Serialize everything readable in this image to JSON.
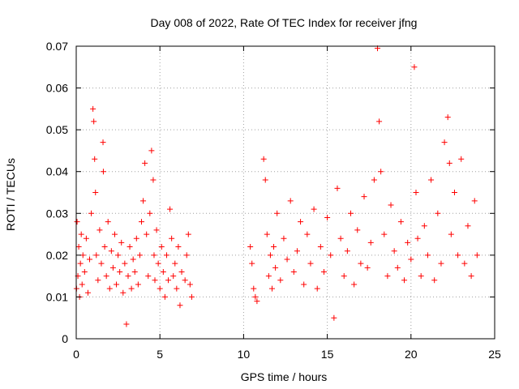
{
  "chart_data": {
    "type": "scatter",
    "title": "Day 008 of 2022, Rate Of TEC Index for receiver jfng",
    "xlabel": "GPS time / hours",
    "ylabel": "ROTI / TECUs",
    "xlim": [
      0,
      25
    ],
    "ylim": [
      0,
      0.07
    ],
    "xticks": [
      0,
      5,
      10,
      15,
      20,
      25
    ],
    "yticks": [
      0,
      0.01,
      0.02,
      0.03,
      0.04,
      0.05,
      0.06,
      0.07
    ],
    "xtick_labels": [
      "0",
      "5",
      "10",
      "15",
      "20",
      "25"
    ],
    "ytick_labels": [
      "0",
      "0.01",
      "0.02",
      "0.03",
      "0.04",
      "0.05",
      "0.06",
      "0.07"
    ],
    "grid": true,
    "marker": "+",
    "color": "#ff0000",
    "series": [
      {
        "name": "ROTI",
        "x": [
          0.02,
          0.05,
          0.1,
          0.15,
          0.2,
          0.25,
          0.3,
          0.35,
          0.4,
          0.5,
          0.6,
          0.7,
          0.8,
          0.9,
          1.0,
          1.05,
          1.1,
          1.15,
          1.2,
          1.3,
          1.4,
          1.5,
          1.6,
          1.62,
          1.7,
          1.8,
          1.9,
          2.0,
          2.1,
          2.2,
          2.3,
          2.4,
          2.5,
          2.6,
          2.7,
          2.8,
          2.9,
          3.0,
          3.1,
          3.2,
          3.3,
          3.4,
          3.5,
          3.6,
          3.7,
          3.8,
          3.9,
          4.0,
          4.1,
          4.2,
          4.3,
          4.4,
          4.5,
          4.6,
          4.65,
          4.7,
          4.8,
          4.9,
          5.0,
          5.1,
          5.2,
          5.3,
          5.4,
          5.5,
          5.6,
          5.7,
          5.8,
          5.9,
          6.0,
          6.1,
          6.2,
          6.3,
          6.5,
          6.6,
          6.7,
          6.8,
          6.9,
          10.4,
          10.5,
          10.6,
          10.7,
          10.8,
          11.2,
          11.3,
          11.4,
          11.5,
          11.6,
          11.7,
          11.8,
          11.9,
          12.0,
          12.2,
          12.4,
          12.6,
          12.8,
          13.0,
          13.2,
          13.4,
          13.6,
          13.8,
          14.0,
          14.2,
          14.4,
          14.6,
          14.8,
          15.0,
          15.2,
          15.4,
          15.6,
          15.8,
          16.0,
          16.2,
          16.4,
          16.6,
          16.8,
          17.0,
          17.2,
          17.4,
          17.6,
          17.8,
          18.0,
          18.1,
          18.2,
          18.4,
          18.6,
          18.8,
          19.0,
          19.2,
          19.4,
          19.6,
          19.8,
          20.0,
          20.2,
          20.3,
          20.4,
          20.6,
          20.8,
          21.0,
          21.2,
          21.4,
          21.6,
          21.8,
          22.0,
          22.2,
          22.3,
          22.4,
          22.6,
          22.8,
          23.0,
          23.2,
          23.4,
          23.6,
          23.8,
          23.95
        ],
        "y": [
          0.012,
          0.028,
          0.015,
          0.022,
          0.01,
          0.018,
          0.025,
          0.013,
          0.02,
          0.016,
          0.024,
          0.011,
          0.019,
          0.03,
          0.055,
          0.052,
          0.043,
          0.035,
          0.02,
          0.014,
          0.026,
          0.018,
          0.047,
          0.04,
          0.022,
          0.015,
          0.028,
          0.012,
          0.021,
          0.017,
          0.025,
          0.013,
          0.02,
          0.016,
          0.023,
          0.011,
          0.018,
          0.0035,
          0.015,
          0.022,
          0.012,
          0.019,
          0.016,
          0.024,
          0.013,
          0.02,
          0.028,
          0.033,
          0.042,
          0.025,
          0.015,
          0.03,
          0.045,
          0.038,
          0.02,
          0.014,
          0.026,
          0.018,
          0.012,
          0.022,
          0.016,
          0.01,
          0.02,
          0.014,
          0.031,
          0.024,
          0.015,
          0.018,
          0.012,
          0.022,
          0.008,
          0.016,
          0.014,
          0.02,
          0.025,
          0.013,
          0.01,
          0.022,
          0.018,
          0.012,
          0.01,
          0.009,
          0.043,
          0.038,
          0.025,
          0.015,
          0.02,
          0.012,
          0.022,
          0.017,
          0.03,
          0.014,
          0.024,
          0.019,
          0.033,
          0.016,
          0.021,
          0.028,
          0.013,
          0.025,
          0.018,
          0.031,
          0.012,
          0.022,
          0.016,
          0.029,
          0.02,
          0.005,
          0.036,
          0.024,
          0.015,
          0.021,
          0.03,
          0.013,
          0.026,
          0.018,
          0.034,
          0.017,
          0.023,
          0.038,
          0.0695,
          0.052,
          0.04,
          0.025,
          0.015,
          0.032,
          0.021,
          0.017,
          0.028,
          0.014,
          0.023,
          0.019,
          0.065,
          0.035,
          0.024,
          0.015,
          0.027,
          0.02,
          0.038,
          0.014,
          0.03,
          0.018,
          0.047,
          0.053,
          0.042,
          0.025,
          0.035,
          0.02,
          0.043,
          0.018,
          0.027,
          0.015,
          0.033,
          0.02
        ]
      }
    ]
  }
}
